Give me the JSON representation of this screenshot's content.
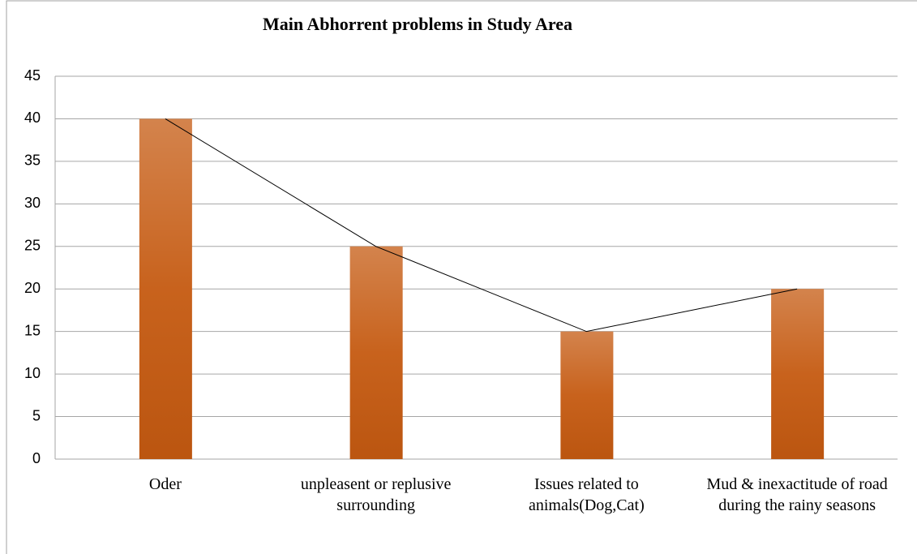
{
  "chart_data": {
    "type": "bar",
    "title": "Main Abhorrent problems in Study Area",
    "categories": [
      "Oder",
      "unpleasent or replusive surrounding",
      "Issues related to animals(Dog,Cat)",
      "Mud & inexactitude of road during the rainy seasons"
    ],
    "values": [
      40,
      25,
      15,
      20
    ],
    "color": "#c55a11",
    "overlay_line": true,
    "line_color": "#000000",
    "ylim": [
      0,
      45
    ],
    "yticks": [
      0,
      5,
      10,
      15,
      20,
      25,
      30,
      35,
      40,
      45
    ],
    "grid": true
  }
}
